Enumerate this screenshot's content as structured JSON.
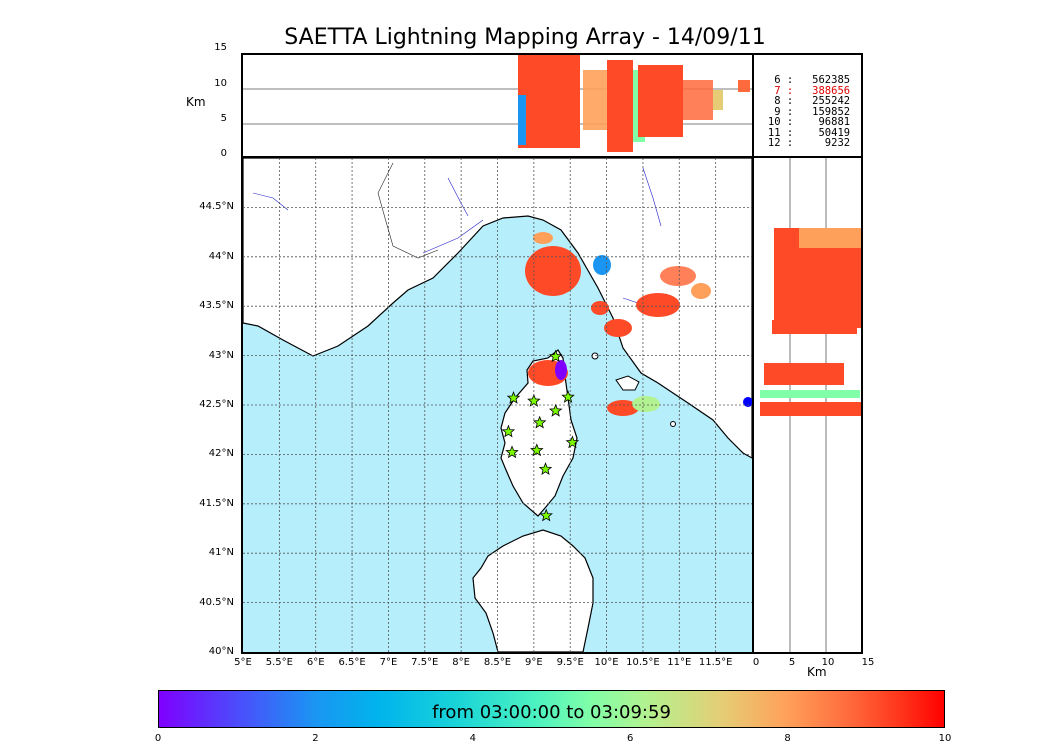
{
  "title": "SAETTA Lightning Mapping Array - 14/09/11",
  "altitude_axis": {
    "label": "Km",
    "ticks": [
      "15",
      "10",
      "5",
      "0"
    ]
  },
  "latitude_ticks": [
    "44.5°N",
    "44°N",
    "43.5°N",
    "43°N",
    "42.5°N",
    "42°N",
    "41.5°N",
    "41°N",
    "40.5°N",
    "40°N"
  ],
  "longitude_ticks": [
    "5°E",
    "5.5°E",
    "6°E",
    "6.5°E",
    "7°E",
    "7.5°E",
    "8°E",
    "8.5°E",
    "9°E",
    "9.5°E",
    "10°E",
    "10.5°E",
    "11°E",
    "11.5°E"
  ],
  "right_panel_axis": {
    "label": "Km",
    "ticks": [
      "0",
      "5",
      "10",
      "15"
    ]
  },
  "source_counts": [
    {
      "label": " 6 :   562385",
      "color": "#000000"
    },
    {
      "label": " 7 :   388656",
      "color": "#e00000"
    },
    {
      "label": " 8 :   255242",
      "color": "#000000"
    },
    {
      "label": " 9 :   159852",
      "color": "#000000"
    },
    {
      "label": "10 :    96881",
      "color": "#000000"
    },
    {
      "label": "11 :    50419",
      "color": "#000000"
    },
    {
      "label": "12 :     9232",
      "color": "#000000"
    }
  ],
  "colorbar": {
    "label": "from 03:00:00 to 03:09:59",
    "ticks": [
      "0",
      "2",
      "4",
      "6",
      "8",
      "10"
    ],
    "range": [
      0,
      10
    ]
  },
  "stations": [
    {
      "lon": 9.3,
      "lat": 42.99
    },
    {
      "lon": 8.72,
      "lat": 42.57
    },
    {
      "lon": 9.0,
      "lat": 42.54
    },
    {
      "lon": 9.47,
      "lat": 42.58
    },
    {
      "lon": 9.3,
      "lat": 42.44
    },
    {
      "lon": 9.08,
      "lat": 42.32
    },
    {
      "lon": 8.65,
      "lat": 42.23
    },
    {
      "lon": 9.53,
      "lat": 42.12
    },
    {
      "lon": 8.7,
      "lat": 42.02
    },
    {
      "lon": 9.04,
      "lat": 42.04
    },
    {
      "lon": 9.16,
      "lat": 41.85
    },
    {
      "lon": 9.17,
      "lat": 41.38
    }
  ],
  "colors": {
    "sea": "#b6eefc",
    "land": "#ffffff",
    "station": "#7cfc00"
  }
}
